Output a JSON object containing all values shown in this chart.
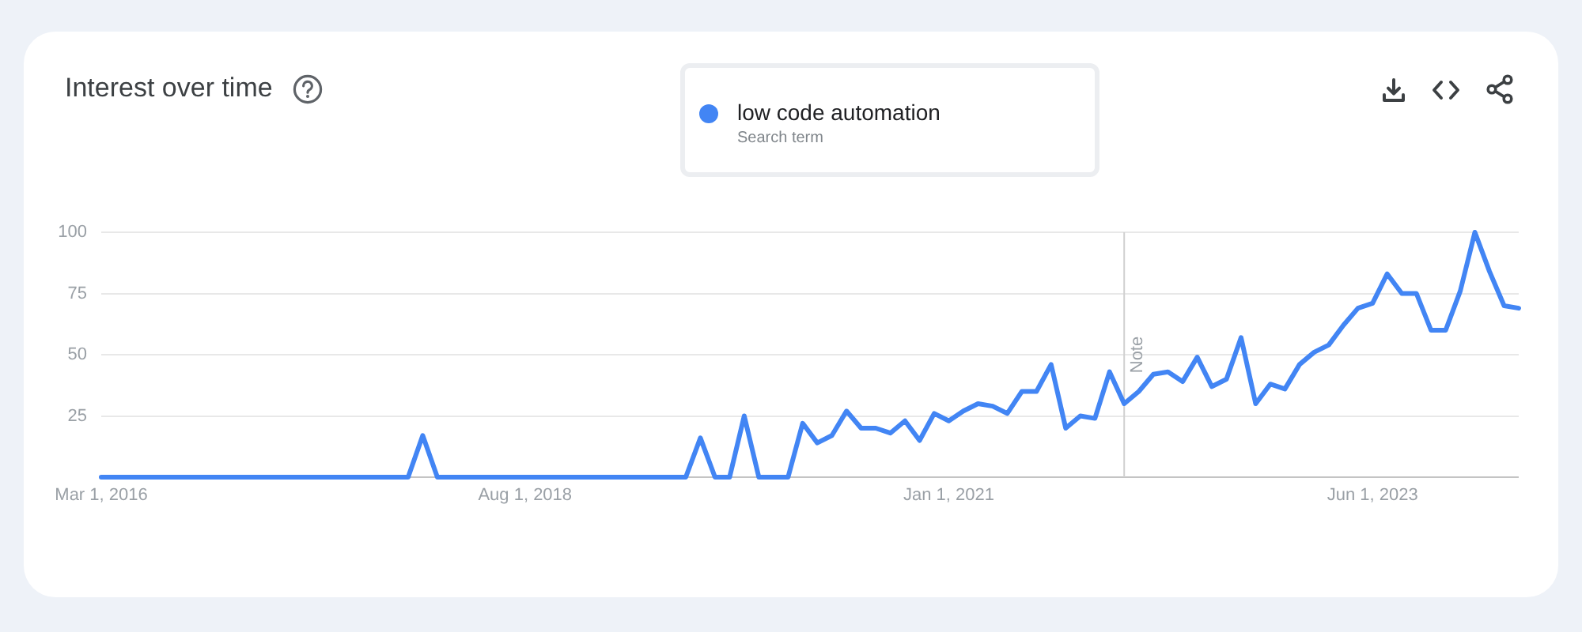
{
  "chart_data": {
    "type": "line",
    "title": "Interest over time",
    "legend_title": "Search term",
    "legend": "top",
    "grid": "y",
    "marker": "none",
    "x": [
      "2016-03",
      "2016-04",
      "2016-05",
      "2016-06",
      "2016-07",
      "2016-08",
      "2016-09",
      "2016-10",
      "2016-11",
      "2016-12",
      "2017-01",
      "2017-02",
      "2017-03",
      "2017-04",
      "2017-05",
      "2017-06",
      "2017-07",
      "2017-08",
      "2017-09",
      "2017-10",
      "2017-11",
      "2017-12",
      "2018-01",
      "2018-02",
      "2018-03",
      "2018-04",
      "2018-05",
      "2018-06",
      "2018-07",
      "2018-08",
      "2018-09",
      "2018-10",
      "2018-11",
      "2018-12",
      "2019-01",
      "2019-02",
      "2019-03",
      "2019-04",
      "2019-05",
      "2019-06",
      "2019-07",
      "2019-08",
      "2019-09",
      "2019-10",
      "2019-11",
      "2019-12",
      "2020-01",
      "2020-02",
      "2020-03",
      "2020-04",
      "2020-05",
      "2020-06",
      "2020-07",
      "2020-08",
      "2020-09",
      "2020-10",
      "2020-11",
      "2020-12",
      "2021-01",
      "2021-02",
      "2021-03",
      "2021-04",
      "2021-05",
      "2021-06",
      "2021-07",
      "2021-08",
      "2021-09",
      "2021-10",
      "2021-11",
      "2021-12",
      "2022-01",
      "2022-02",
      "2022-03",
      "2022-04",
      "2022-05",
      "2022-06",
      "2022-07",
      "2022-08",
      "2022-09",
      "2022-10",
      "2022-11",
      "2022-12",
      "2023-01",
      "2023-02",
      "2023-03",
      "2023-04",
      "2023-05",
      "2023-06",
      "2023-07",
      "2023-08",
      "2023-09",
      "2023-10",
      "2023-11",
      "2023-12",
      "2024-01",
      "2024-02",
      "2024-03",
      "2024-04"
    ],
    "series": [
      {
        "name": "low code automation",
        "color": "#4285f4",
        "values": [
          0,
          0,
          0,
          0,
          0,
          0,
          0,
          0,
          0,
          0,
          0,
          0,
          0,
          0,
          0,
          0,
          0,
          0,
          0,
          0,
          0,
          0,
          17,
          0,
          0,
          0,
          0,
          0,
          0,
          0,
          0,
          0,
          0,
          0,
          0,
          0,
          0,
          0,
          0,
          0,
          0,
          16,
          0,
          0,
          25,
          0,
          0,
          0,
          22,
          14,
          17,
          27,
          20,
          20,
          18,
          23,
          15,
          26,
          23,
          27,
          30,
          29,
          26,
          35,
          35,
          46,
          20,
          25,
          24,
          43,
          30,
          35,
          42,
          43,
          39,
          49,
          37,
          40,
          57,
          30,
          38,
          36,
          46,
          51,
          54,
          62,
          69,
          71,
          83,
          75,
          75,
          60,
          60,
          76,
          100,
          84,
          70,
          69
        ]
      }
    ],
    "xlim": [
      "2016-03",
      "2024-04"
    ],
    "xticks": [
      {
        "value": "2016-03-01",
        "label": "Mar 1, 2016"
      },
      {
        "value": "2018-08-01",
        "label": "Aug 1, 2018"
      },
      {
        "value": "2021-01-01",
        "label": "Jan 1, 2021"
      },
      {
        "value": "2023-06-01",
        "label": "Jun 1, 2023"
      }
    ],
    "ylim": [
      0,
      100
    ],
    "yticks": [
      {
        "value": 0,
        "label": null
      },
      25,
      50,
      75,
      100
    ],
    "ref_lines": [
      {
        "axis": "x",
        "value": "2022-01-01",
        "label": "Note",
        "color": "#d0d0d0"
      }
    ]
  }
}
